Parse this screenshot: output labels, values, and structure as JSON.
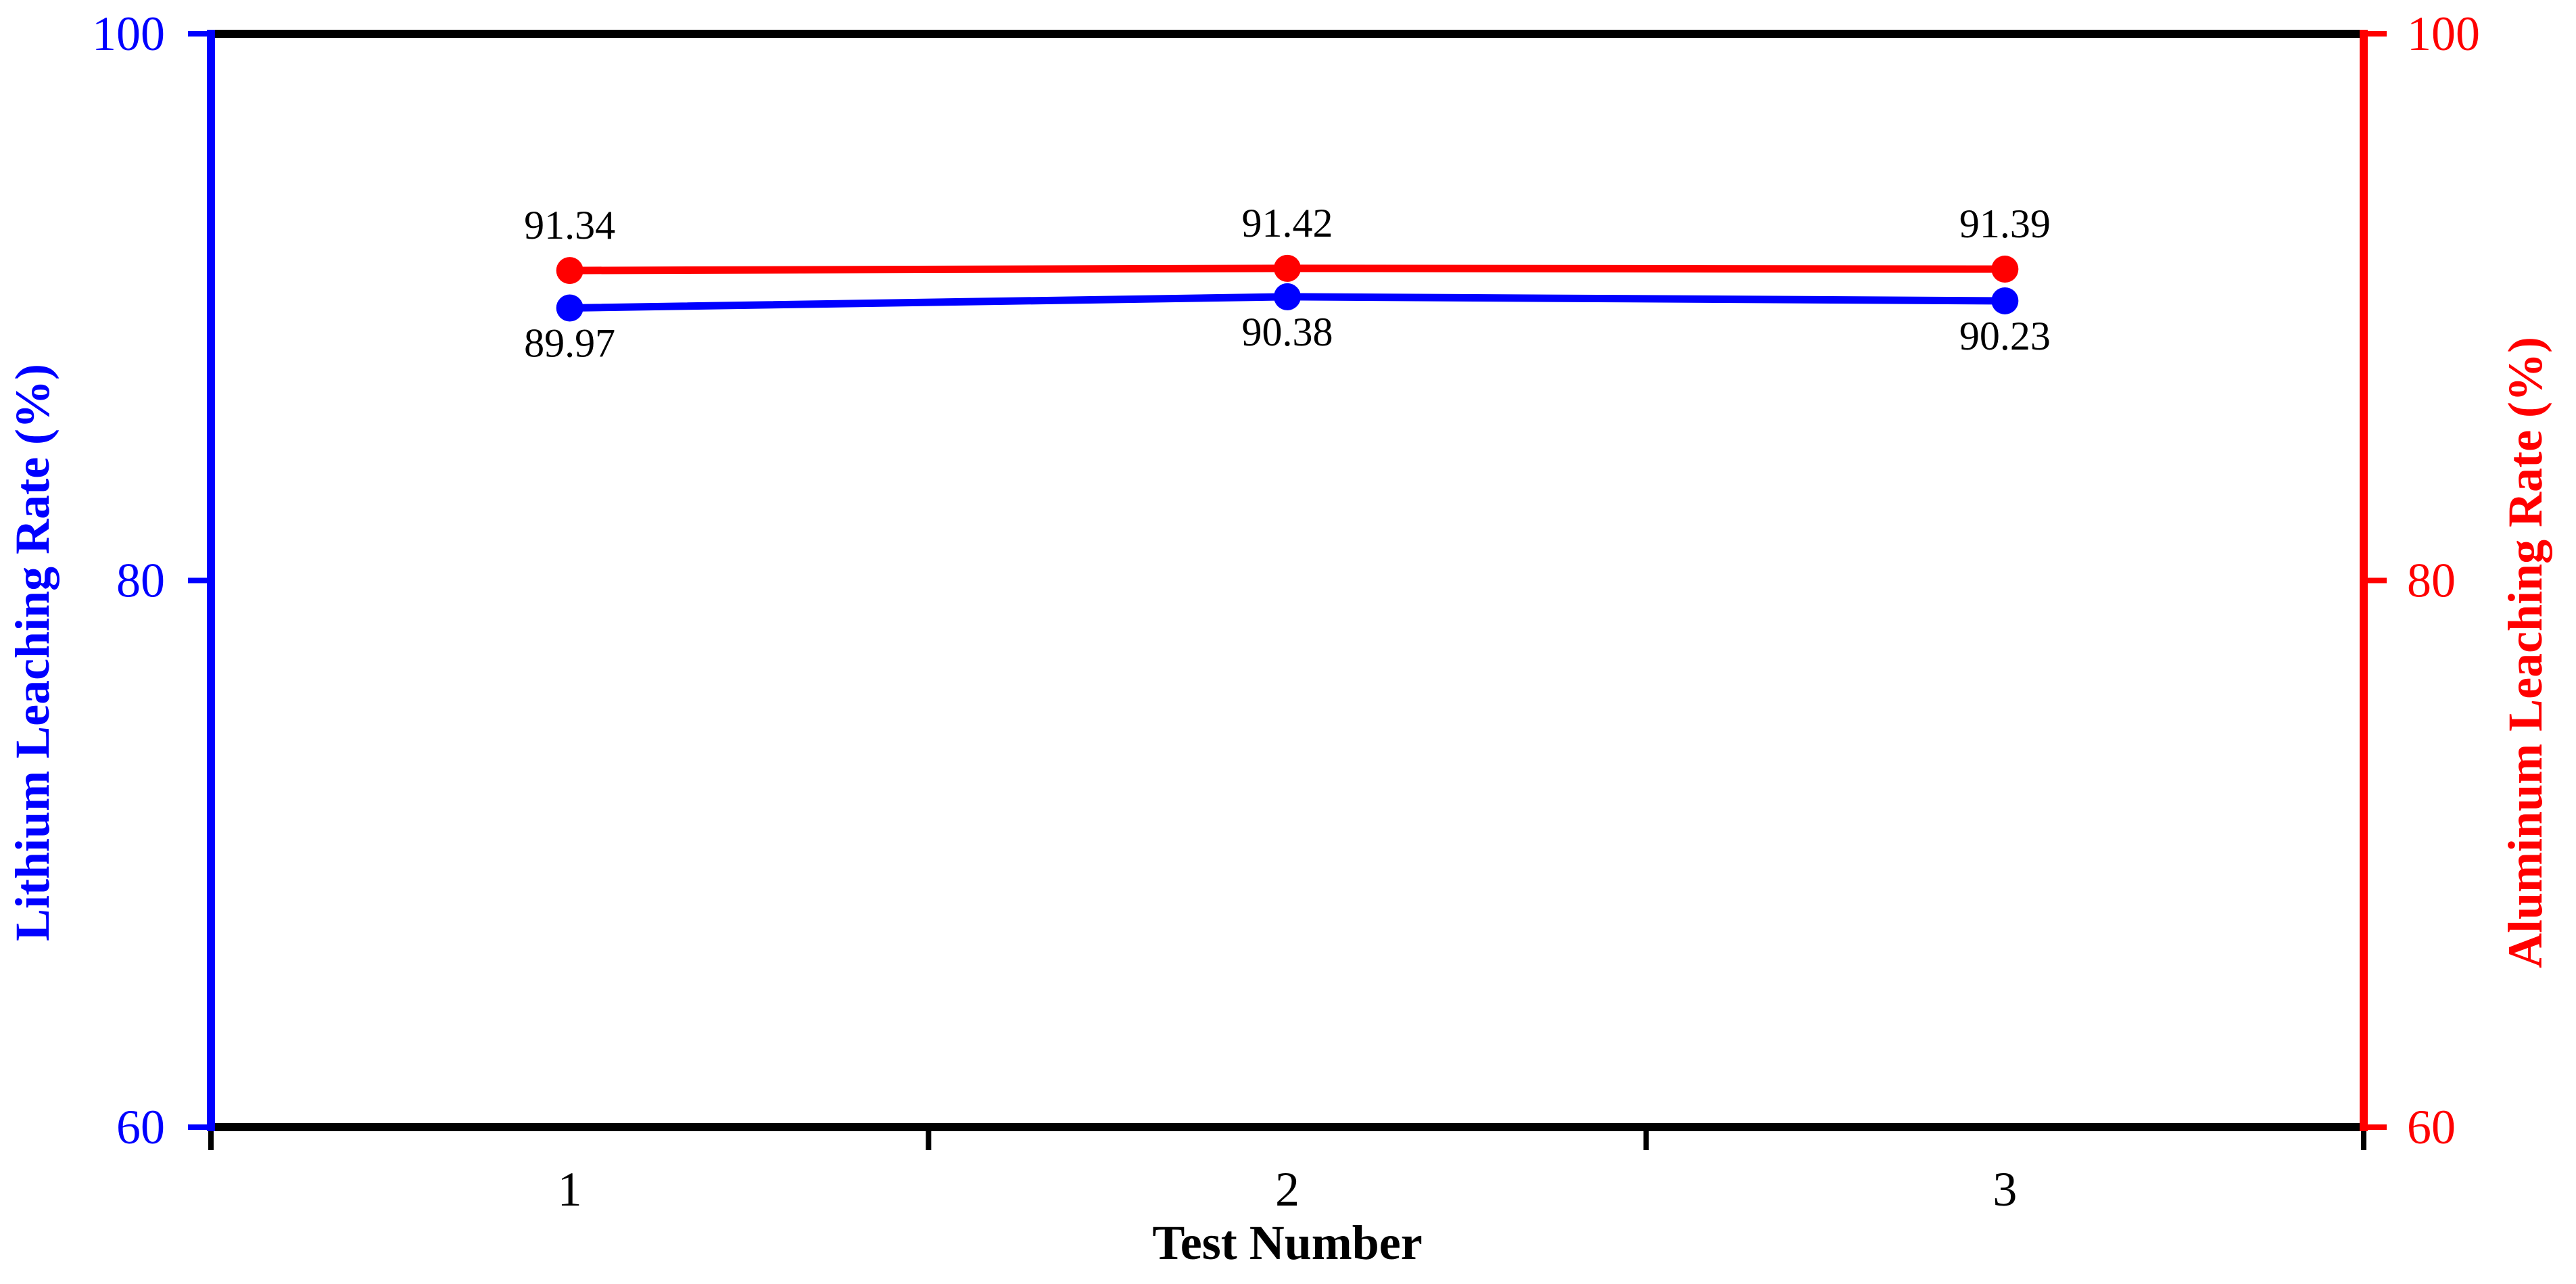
{
  "chart_data": {
    "type": "line",
    "title": "",
    "xlabel": "Test Number",
    "categories": [
      "1",
      "2",
      "3"
    ],
    "grid": false,
    "legend_position": "none",
    "background_color": "#ffffff",
    "left_axis": {
      "label": "Lithium Leaching Rate (%)",
      "color": "#0000ff",
      "min": 60,
      "max": 100,
      "tick_values": [
        100,
        80,
        60
      ],
      "ticks": [
        "100",
        "80",
        "60"
      ]
    },
    "right_axis": {
      "label": "Aluminum Leaching Rate (%)",
      "color": "#ff0000",
      "min": 60,
      "max": 100,
      "tick_values": [
        100,
        80,
        60
      ],
      "ticks": [
        "100",
        "80",
        "60"
      ]
    },
    "series": [
      {
        "key": "lithium",
        "name": "Lithium Leaching Rate (%)",
        "axis": "left",
        "color": "#0000ff",
        "marker": "circle",
        "values": [
          89.97,
          90.38,
          90.23
        ],
        "value_labels": [
          "89.97",
          "90.38",
          "90.23"
        ],
        "label_position": "below"
      },
      {
        "key": "aluminum",
        "name": "Aluminum Leaching Rate (%)",
        "axis": "right",
        "color": "#ff0000",
        "marker": "circle",
        "values": [
          91.34,
          91.42,
          91.39
        ],
        "value_labels": [
          "91.34",
          "91.42",
          "91.39"
        ],
        "label_position": "above"
      }
    ]
  }
}
